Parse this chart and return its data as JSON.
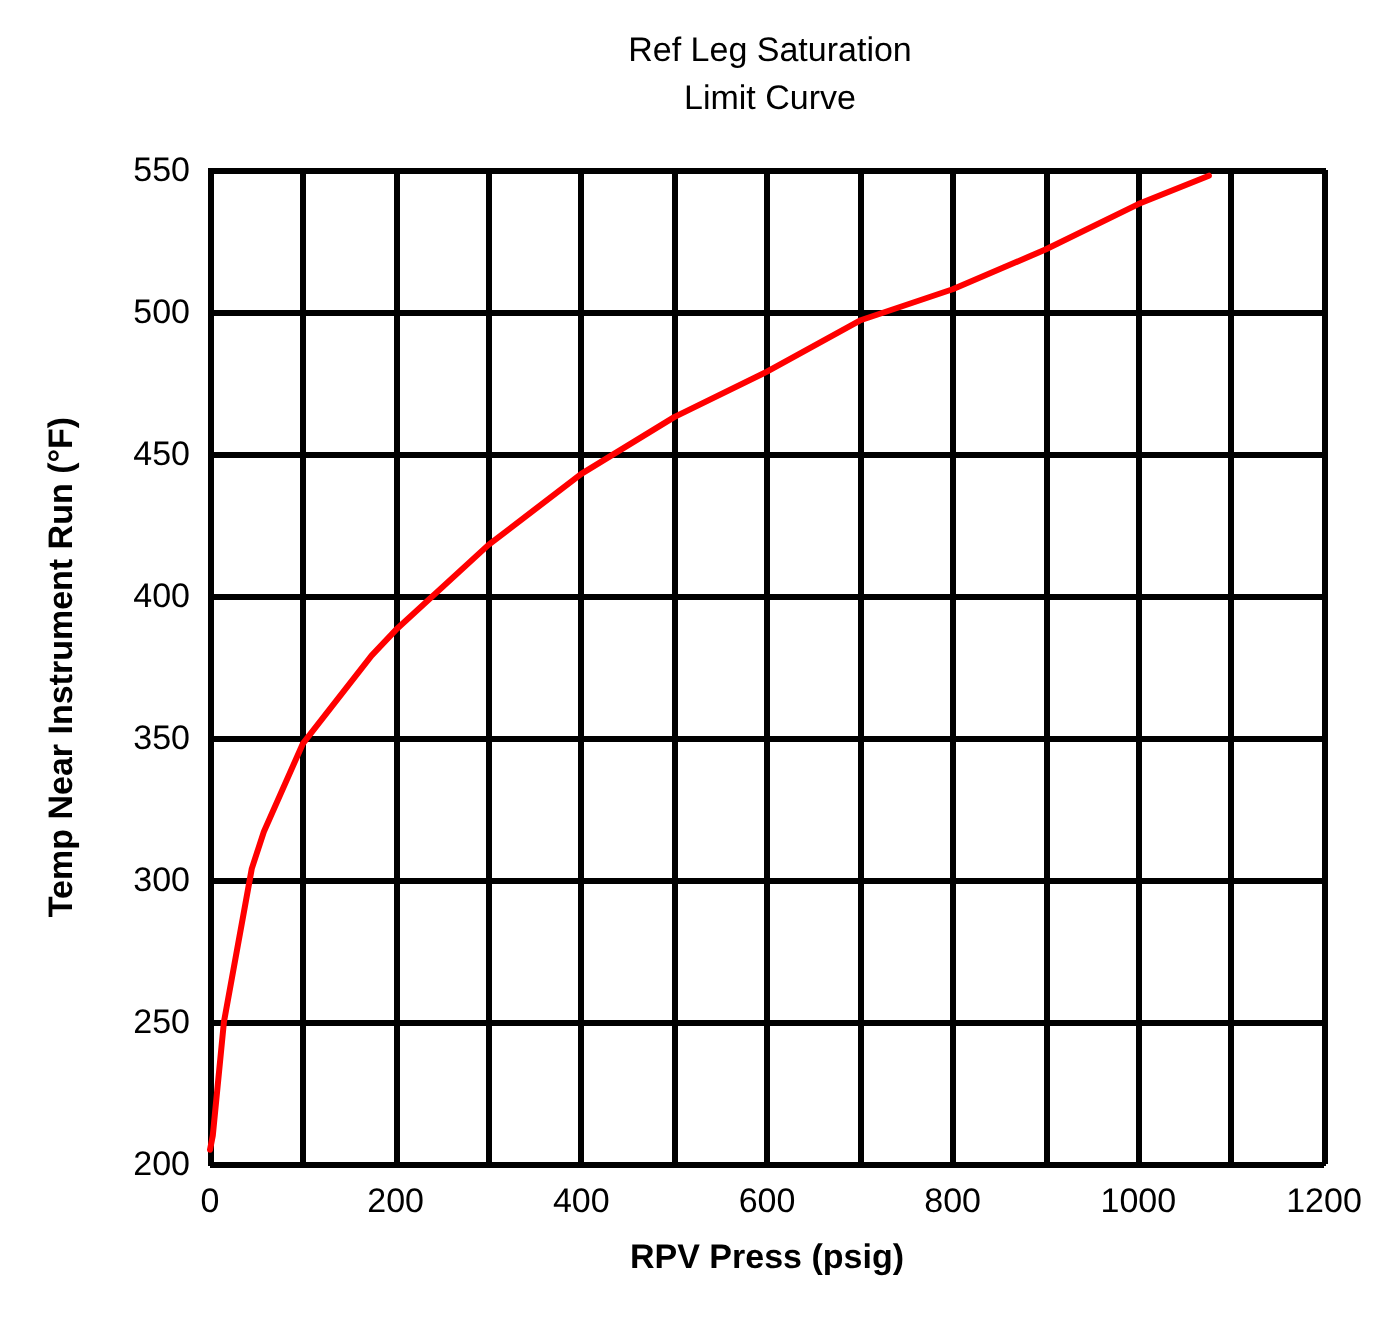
{
  "chart_data": {
    "type": "line",
    "title": "Ref Leg Saturation\nLimit Curve",
    "xlabel": "RPV Press (psig)",
    "ylabel": "Temp Near Instrument Run (°F)",
    "x": [
      0,
      3,
      15,
      45,
      58,
      100,
      174,
      200,
      300,
      400,
      500,
      600,
      700,
      800,
      900,
      1000,
      1076
    ],
    "series": [
      {
        "color": "#ff0000",
        "values": [
          205,
          210,
          250,
          304,
          317,
          348,
          379,
          388,
          418,
          443,
          463,
          479,
          497,
          508,
          522,
          538,
          548
        ]
      }
    ],
    "xlim": [
      0,
      1200
    ],
    "xticks": [
      0,
      {
        "value": 100,
        "label": null
      },
      200,
      {
        "value": 300,
        "label": null
      },
      400,
      {
        "value": 500,
        "label": null
      },
      600,
      {
        "value": 700,
        "label": null
      },
      800,
      {
        "value": 900,
        "label": null
      },
      1000,
      {
        "value": 1100,
        "label": null
      },
      1200
    ],
    "ylim": [
      200,
      550
    ],
    "yticks": [
      200,
      250,
      300,
      350,
      400,
      450,
      500,
      550
    ],
    "grid": true,
    "marker": "none",
    "line_style": "solid"
  }
}
